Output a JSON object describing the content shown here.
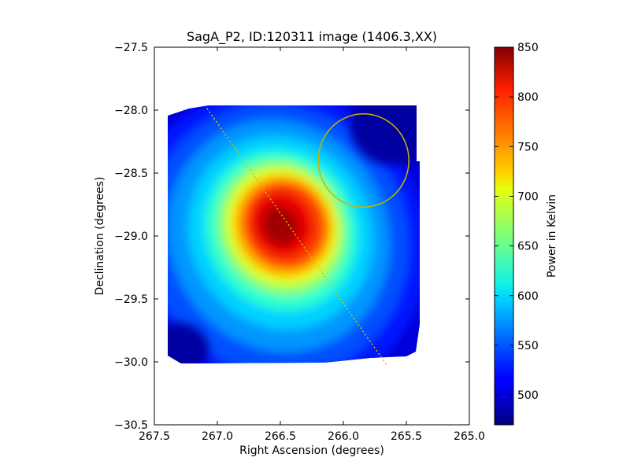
{
  "chart_data": {
    "type": "heatmap",
    "title": "SagA_P2, ID:120311 image (1406.3,XX)",
    "xlabel": "Right Ascension (degrees)",
    "ylabel": "Declination (degrees)",
    "xlim": [
      267.5,
      265.0
    ],
    "ylim": [
      -30.5,
      -27.5
    ],
    "x_ticks": [
      "267.5",
      "267.0",
      "266.5",
      "266.0",
      "265.5",
      "265.0"
    ],
    "x_tick_values": [
      267.5,
      267.0,
      266.5,
      266.0,
      265.5,
      265.0
    ],
    "y_ticks": [
      "−27.5",
      "−28.0",
      "−28.5",
      "−29.0",
      "−29.5",
      "−30.0",
      "−30.5"
    ],
    "y_tick_values": [
      -27.5,
      -28.0,
      -28.5,
      -29.0,
      -29.5,
      -30.0,
      -30.5
    ],
    "colorbar": {
      "label": "Power in Kelvin",
      "min": 470,
      "max": 850,
      "ticks": [
        500,
        550,
        600,
        650,
        700,
        750,
        800,
        850
      ],
      "tick_labels": [
        "500",
        "550",
        "600",
        "650",
        "700",
        "750",
        "800",
        "850"
      ],
      "colormap": "jet"
    },
    "map": {
      "coverage_ra": [
        267.4,
        265.4
      ],
      "coverage_dec": [
        -30.0,
        -27.97
      ],
      "peak": {
        "ra": 266.5,
        "dec": -28.9,
        "value": 850
      },
      "background_value": 470,
      "edge_value": 520
    },
    "overlays": {
      "line": {
        "from": [
          267.1,
          -27.96
        ],
        "to": [
          265.66,
          -30.02
        ],
        "color": "#d6c200",
        "style": "dotted"
      },
      "circle": {
        "center": [
          265.84,
          -28.4
        ],
        "radius_ra": 0.36,
        "radius_dec": 0.37,
        "color": "#c8b400"
      }
    },
    "grid": false,
    "legend": "none"
  }
}
